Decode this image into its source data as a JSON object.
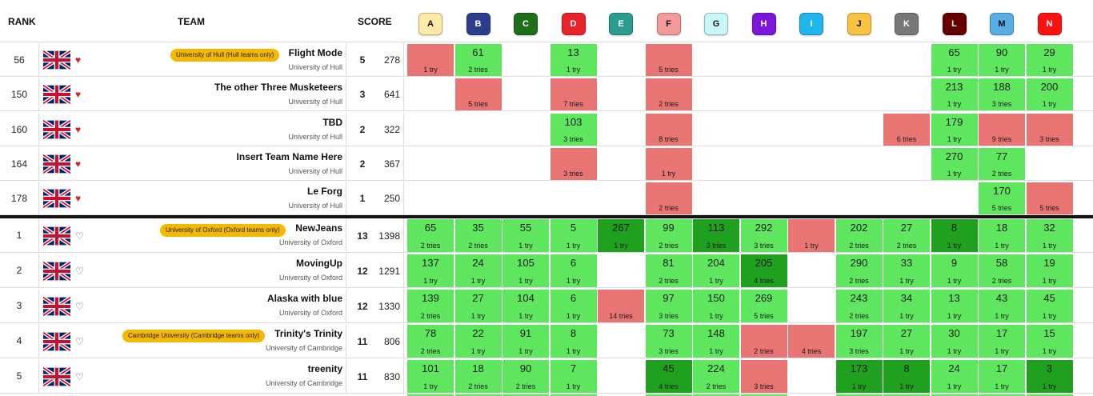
{
  "headers": {
    "rank": "RANK",
    "team": "TEAM",
    "score": "SCORE"
  },
  "colors": {
    "solved": "#5ee65e",
    "first_to_solve": "#1fa01f",
    "attempted": "#e87474",
    "chip": "#f5b800"
  },
  "problems": [
    {
      "letter": "A",
      "color": "#ffe9a6",
      "text_color": "#111111"
    },
    {
      "letter": "B",
      "color": "#2b3d8c",
      "text_color": "#ffffff"
    },
    {
      "letter": "C",
      "color": "#1f6f1a",
      "text_color": "#ffffff"
    },
    {
      "letter": "D",
      "color": "#e8242a",
      "text_color": "#ffffff"
    },
    {
      "letter": "E",
      "color": "#2a9d8f",
      "text_color": "#ffffff"
    },
    {
      "letter": "F",
      "color": "#f29a9a",
      "text_color": "#111111"
    },
    {
      "letter": "G",
      "color": "#c9f6f6",
      "text_color": "#111111"
    },
    {
      "letter": "H",
      "color": "#7a17d8",
      "text_color": "#ffffff"
    },
    {
      "letter": "I",
      "color": "#1fb6ee",
      "text_color": "#ffffff"
    },
    {
      "letter": "J",
      "color": "#f6c242",
      "text_color": "#111111"
    },
    {
      "letter": "K",
      "color": "#777777",
      "text_color": "#ffffff"
    },
    {
      "letter": "L",
      "color": "#660000",
      "text_color": "#ffffff"
    },
    {
      "letter": "M",
      "color": "#5aaee6",
      "text_color": "#111111"
    },
    {
      "letter": "N",
      "color": "#ff1111",
      "text_color": "#ffffff"
    }
  ],
  "teams": [
    {
      "rank": "56",
      "fav": true,
      "name": "Flight Mode",
      "uni": "University of Hull",
      "chip": "University of Hull (Hull teams only)",
      "solved": "5",
      "penalty": "278",
      "cells": [
        {
          "s": "bad",
          "tries": "1 try"
        },
        {
          "s": "ok",
          "time": "61",
          "tries": "2 tries"
        },
        null,
        {
          "s": "ok",
          "time": "13",
          "tries": "1 try"
        },
        null,
        {
          "s": "bad",
          "tries": "5 tries"
        },
        null,
        null,
        null,
        null,
        null,
        {
          "s": "ok",
          "time": "65",
          "tries": "1 try"
        },
        {
          "s": "ok",
          "time": "90",
          "tries": "1 try"
        },
        {
          "s": "ok",
          "time": "29",
          "tries": "1 try"
        }
      ]
    },
    {
      "rank": "150",
      "fav": true,
      "name": "The other Three Musketeers",
      "uni": "University of Hull",
      "solved": "3",
      "penalty": "641",
      "cells": [
        null,
        {
          "s": "bad",
          "tries": "5 tries"
        },
        null,
        {
          "s": "bad",
          "tries": "7 tries"
        },
        null,
        {
          "s": "bad",
          "tries": "2 tries"
        },
        null,
        null,
        null,
        null,
        null,
        {
          "s": "ok",
          "time": "213",
          "tries": "1 try"
        },
        {
          "s": "ok",
          "time": "188",
          "tries": "3 tries"
        },
        {
          "s": "ok",
          "time": "200",
          "tries": "1 try"
        }
      ]
    },
    {
      "rank": "160",
      "fav": true,
      "name": "TBD",
      "uni": "University of Hull",
      "solved": "2",
      "penalty": "322",
      "cells": [
        null,
        null,
        null,
        {
          "s": "ok",
          "time": "103",
          "tries": "3 tries"
        },
        null,
        {
          "s": "bad",
          "tries": "8 tries"
        },
        null,
        null,
        null,
        null,
        {
          "s": "bad",
          "tries": "6 tries"
        },
        {
          "s": "ok",
          "time": "179",
          "tries": "1 try"
        },
        {
          "s": "bad",
          "tries": "9 tries"
        },
        {
          "s": "bad",
          "tries": "3 tries"
        }
      ]
    },
    {
      "rank": "164",
      "fav": true,
      "name": "Insert Team Name Here",
      "uni": "University of Hull",
      "solved": "2",
      "penalty": "367",
      "cells": [
        null,
        null,
        null,
        {
          "s": "bad",
          "tries": "3 tries"
        },
        null,
        {
          "s": "bad",
          "tries": "1 try"
        },
        null,
        null,
        null,
        null,
        null,
        {
          "s": "ok",
          "time": "270",
          "tries": "1 try"
        },
        {
          "s": "ok",
          "time": "77",
          "tries": "2 tries"
        },
        null
      ]
    },
    {
      "rank": "178",
      "fav": true,
      "name": "Le Forg",
      "uni": "University of Hull",
      "solved": "1",
      "penalty": "250",
      "cells": [
        null,
        null,
        null,
        null,
        null,
        {
          "s": "bad",
          "tries": "2 tries"
        },
        null,
        null,
        null,
        null,
        null,
        null,
        {
          "s": "ok",
          "time": "170",
          "tries": "5 tries"
        },
        {
          "s": "bad",
          "tries": "5 tries"
        }
      ]
    },
    {
      "rank": "1",
      "fav": false,
      "name": "NewJeans",
      "uni": "University of Oxford",
      "chip": "University of Oxford (Oxford teams only)",
      "solved": "13",
      "penalty": "1398",
      "cells": [
        {
          "s": "ok",
          "time": "65",
          "tries": "2 tries"
        },
        {
          "s": "ok",
          "time": "35",
          "tries": "2 tries"
        },
        {
          "s": "ok",
          "time": "55",
          "tries": "1 try"
        },
        {
          "s": "ok",
          "time": "5",
          "tries": "1 try"
        },
        {
          "s": "first",
          "time": "267",
          "tries": "1 try"
        },
        {
          "s": "ok",
          "time": "99",
          "tries": "2 tries"
        },
        {
          "s": "first",
          "time": "113",
          "tries": "3 tries"
        },
        {
          "s": "ok",
          "time": "292",
          "tries": "3 tries"
        },
        {
          "s": "bad",
          "tries": "1 try"
        },
        {
          "s": "ok",
          "time": "202",
          "tries": "2 tries"
        },
        {
          "s": "ok",
          "time": "27",
          "tries": "2 tries"
        },
        {
          "s": "first",
          "time": "8",
          "tries": "1 try"
        },
        {
          "s": "ok",
          "time": "18",
          "tries": "1 try"
        },
        {
          "s": "ok",
          "time": "32",
          "tries": "1 try"
        }
      ]
    },
    {
      "rank": "2",
      "fav": false,
      "name": "MovingUp",
      "uni": "University of Oxford",
      "solved": "12",
      "penalty": "1291",
      "cells": [
        {
          "s": "ok",
          "time": "137",
          "tries": "1 try"
        },
        {
          "s": "ok",
          "time": "24",
          "tries": "1 try"
        },
        {
          "s": "ok",
          "time": "105",
          "tries": "1 try"
        },
        {
          "s": "ok",
          "time": "6",
          "tries": "1 try"
        },
        null,
        {
          "s": "ok",
          "time": "81",
          "tries": "2 tries"
        },
        {
          "s": "ok",
          "time": "204",
          "tries": "1 try"
        },
        {
          "s": "first",
          "time": "205",
          "tries": "4 tries"
        },
        null,
        {
          "s": "ok",
          "time": "290",
          "tries": "2 tries"
        },
        {
          "s": "ok",
          "time": "33",
          "tries": "1 try"
        },
        {
          "s": "ok",
          "time": "9",
          "tries": "1 try"
        },
        {
          "s": "ok",
          "time": "58",
          "tries": "2 tries"
        },
        {
          "s": "ok",
          "time": "19",
          "tries": "1 try"
        }
      ]
    },
    {
      "rank": "3",
      "fav": false,
      "name": "Alaska with blue",
      "uni": "University of Oxford",
      "solved": "12",
      "penalty": "1330",
      "cells": [
        {
          "s": "ok",
          "time": "139",
          "tries": "2 tries"
        },
        {
          "s": "ok",
          "time": "27",
          "tries": "1 try"
        },
        {
          "s": "ok",
          "time": "104",
          "tries": "1 try"
        },
        {
          "s": "ok",
          "time": "6",
          "tries": "1 try"
        },
        {
          "s": "bad",
          "tries": "14 tries"
        },
        {
          "s": "ok",
          "time": "97",
          "tries": "3 tries"
        },
        {
          "s": "ok",
          "time": "150",
          "tries": "1 try"
        },
        {
          "s": "ok",
          "time": "269",
          "tries": "5 tries"
        },
        null,
        {
          "s": "ok",
          "time": "243",
          "tries": "2 tries"
        },
        {
          "s": "ok",
          "time": "34",
          "tries": "1 try"
        },
        {
          "s": "ok",
          "time": "13",
          "tries": "1 try"
        },
        {
          "s": "ok",
          "time": "43",
          "tries": "1 try"
        },
        {
          "s": "ok",
          "time": "45",
          "tries": "1 try"
        }
      ]
    },
    {
      "rank": "4",
      "fav": false,
      "name": "Trinity's Trinity",
      "uni": "University of Cambridge",
      "chip": "Cambridge University (Cambridge teams only)",
      "solved": "11",
      "penalty": "806",
      "cells": [
        {
          "s": "ok",
          "time": "78",
          "tries": "2 tries"
        },
        {
          "s": "ok",
          "time": "22",
          "tries": "1 try"
        },
        {
          "s": "ok",
          "time": "91",
          "tries": "1 try"
        },
        {
          "s": "ok",
          "time": "8",
          "tries": "1 try"
        },
        null,
        {
          "s": "ok",
          "time": "73",
          "tries": "3 tries"
        },
        {
          "s": "ok",
          "time": "148",
          "tries": "1 try"
        },
        {
          "s": "bad",
          "tries": "2 tries"
        },
        {
          "s": "bad",
          "tries": "4 tries"
        },
        {
          "s": "ok",
          "time": "197",
          "tries": "3 tries"
        },
        {
          "s": "ok",
          "time": "27",
          "tries": "1 try"
        },
        {
          "s": "ok",
          "time": "30",
          "tries": "1 try"
        },
        {
          "s": "ok",
          "time": "17",
          "tries": "1 try"
        },
        {
          "s": "ok",
          "time": "15",
          "tries": "1 try"
        }
      ]
    },
    {
      "rank": "5",
      "fav": false,
      "name": "treenity",
      "uni": "University of Cambridge",
      "solved": "11",
      "penalty": "830",
      "cells": [
        {
          "s": "ok",
          "time": "101",
          "tries": "1 try"
        },
        {
          "s": "ok",
          "time": "18",
          "tries": "2 tries"
        },
        {
          "s": "ok",
          "time": "90",
          "tries": "2 tries"
        },
        {
          "s": "ok",
          "time": "7",
          "tries": "1 try"
        },
        null,
        {
          "s": "first",
          "time": "45",
          "tries": "4 tries"
        },
        {
          "s": "ok",
          "time": "224",
          "tries": "2 tries"
        },
        {
          "s": "bad",
          "tries": "3 tries"
        },
        null,
        {
          "s": "first",
          "time": "173",
          "tries": "1 try"
        },
        {
          "s": "first",
          "time": "8",
          "tries": "1 try"
        },
        {
          "s": "ok",
          "time": "24",
          "tries": "1 try"
        },
        {
          "s": "ok",
          "time": "17",
          "tries": "1 try"
        },
        {
          "s": "first",
          "time": "3",
          "tries": "1 try"
        }
      ]
    }
  ]
}
